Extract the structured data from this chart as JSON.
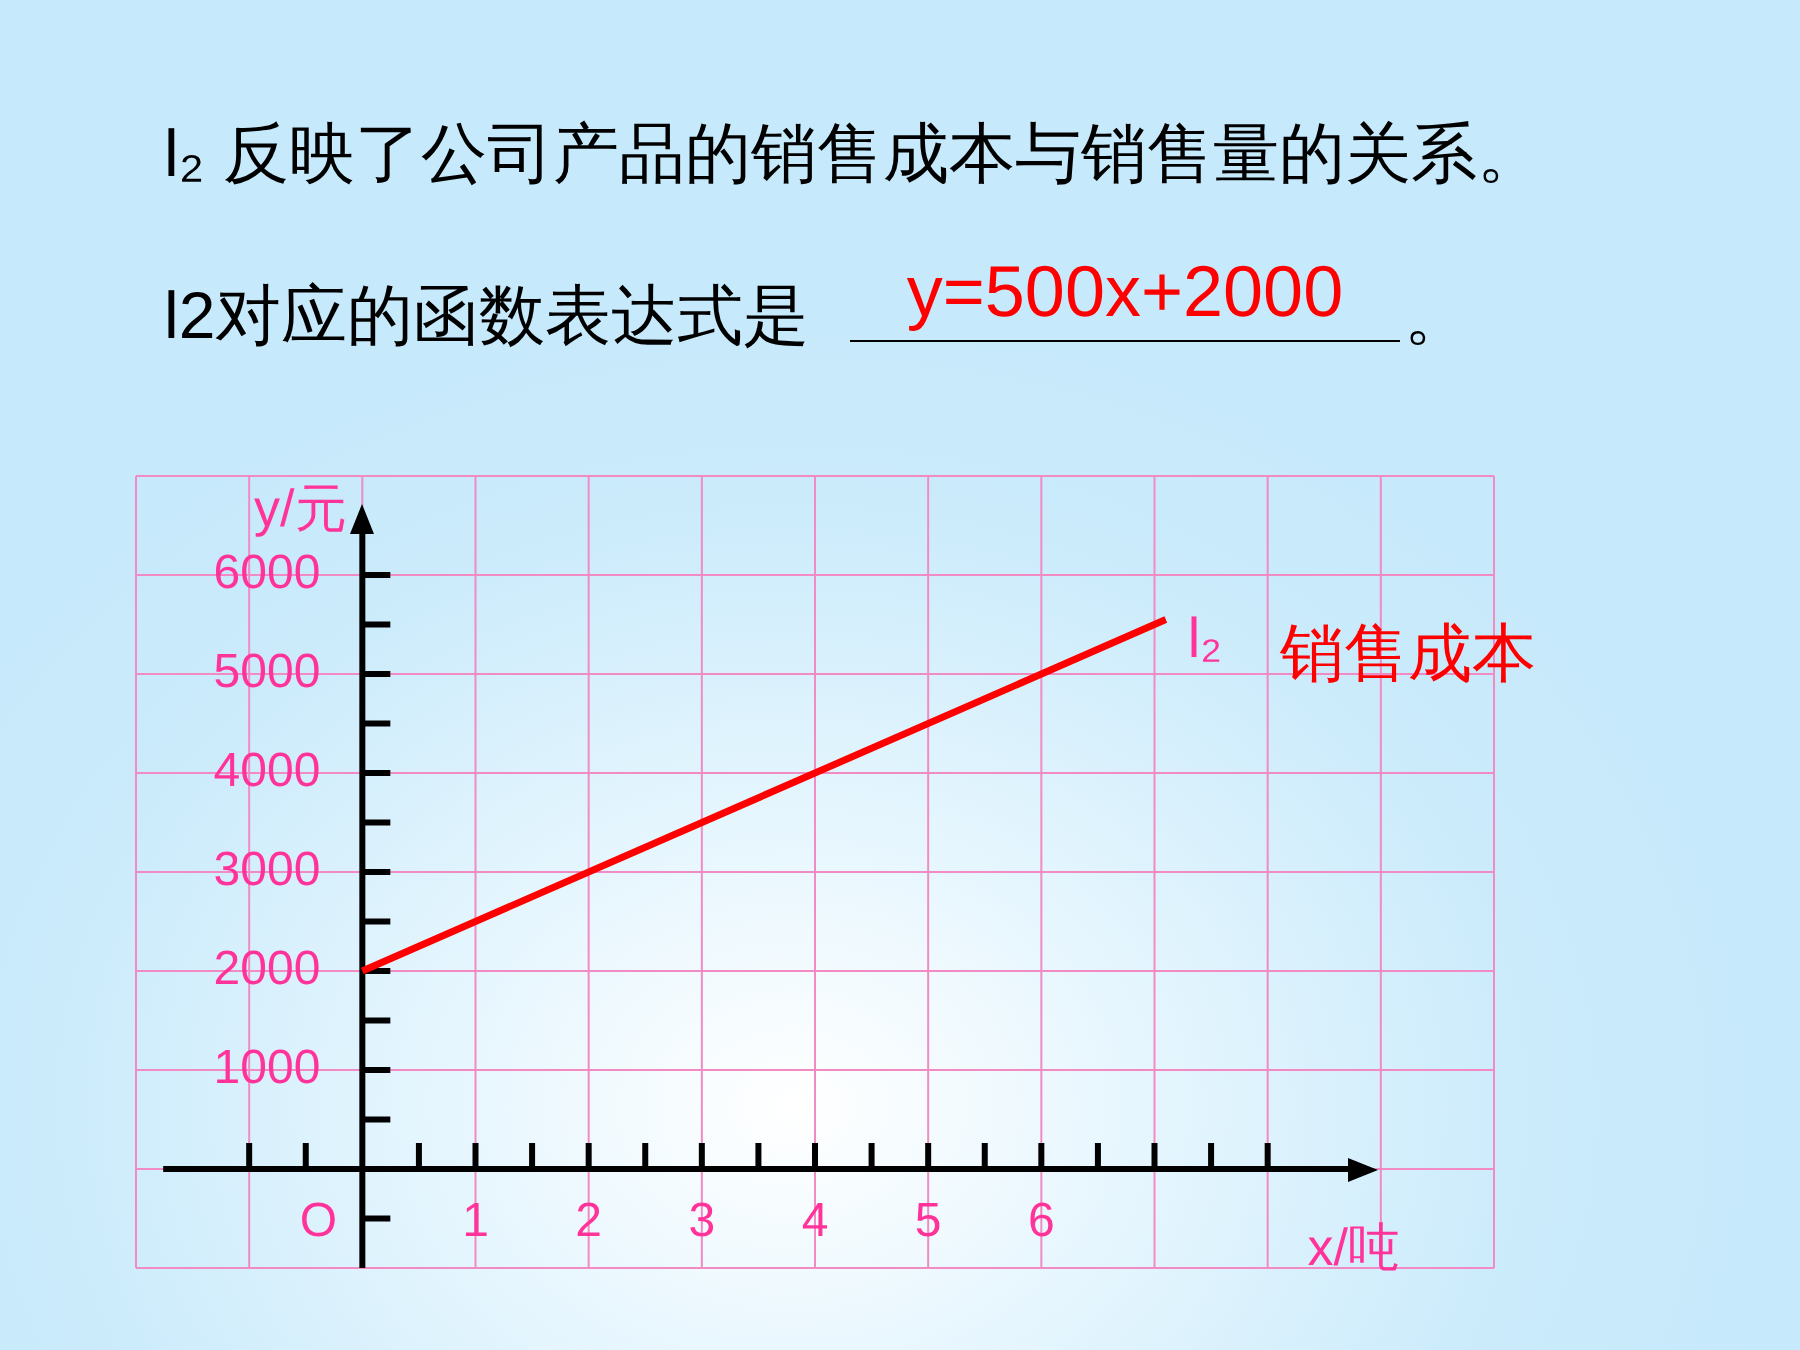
{
  "chart_data": {
    "type": "line",
    "title": "l₂ 反映了公司产品的销售成本与销售量的关系。",
    "subtitle": "l2对应的函数表达式是",
    "annotations": [
      "y=500x+2000",
      "。",
      "销售成本",
      "O"
    ],
    "xlabel": "x/吨",
    "ylabel": "y/元",
    "x": [
      0,
      7.1
    ],
    "series": [
      {
        "name": "l₂",
        "color": "#ff0000",
        "values": [
          2000,
          5550
        ]
      }
    ],
    "xlim": [
      -2,
      10
    ],
    "ylim": [
      -1000,
      7000
    ],
    "xticks": [
      {
        "value": -1,
        "label": null
      },
      {
        "value": -0.5,
        "label": null
      },
      {
        "value": 0.5,
        "label": null
      },
      1,
      {
        "value": 1.5,
        "label": null
      },
      2,
      {
        "value": 2.5,
        "label": null
      },
      3,
      {
        "value": 3.5,
        "label": null
      },
      4,
      {
        "value": 4.5,
        "label": null
      },
      5,
      {
        "value": 5.5,
        "label": null
      },
      6,
      {
        "value": 6.5,
        "label": null
      },
      {
        "value": 7,
        "label": null
      },
      {
        "value": 7.5,
        "label": null
      },
      {
        "value": 8,
        "label": null
      }
    ],
    "yticks": [
      {
        "value": -500,
        "label": null
      },
      {
        "value": 500,
        "label": null
      },
      1000,
      {
        "value": 1500,
        "label": null
      },
      2000,
      {
        "value": 2500,
        "label": null
      },
      3000,
      {
        "value": 3500,
        "label": null
      },
      4000,
      {
        "value": 4500,
        "label": null
      },
      5000,
      {
        "value": 5500,
        "label": null
      },
      6000
    ],
    "grid": true
  }
}
